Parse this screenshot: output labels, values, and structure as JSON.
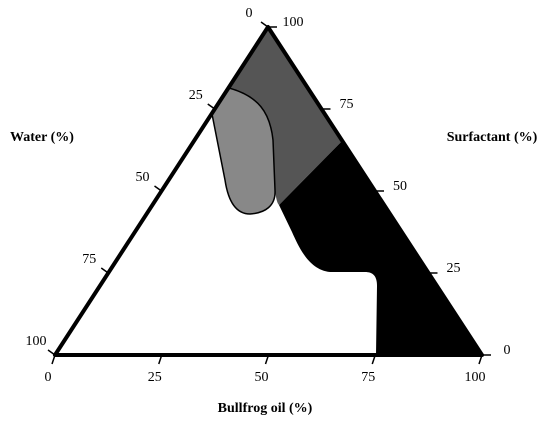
{
  "chart_data": {
    "type": "ternary",
    "bottom_axis": {
      "label": "Bullfrog oil (%)",
      "ticks": [
        0,
        25,
        50,
        75,
        100
      ]
    },
    "left_axis": {
      "label": "Water (%)",
      "ticks": [
        0,
        25,
        50,
        75,
        100
      ]
    },
    "right_axis": {
      "label": "Surfactant (%)",
      "ticks": [
        0,
        25,
        50,
        75,
        100
      ]
    }
  }
}
